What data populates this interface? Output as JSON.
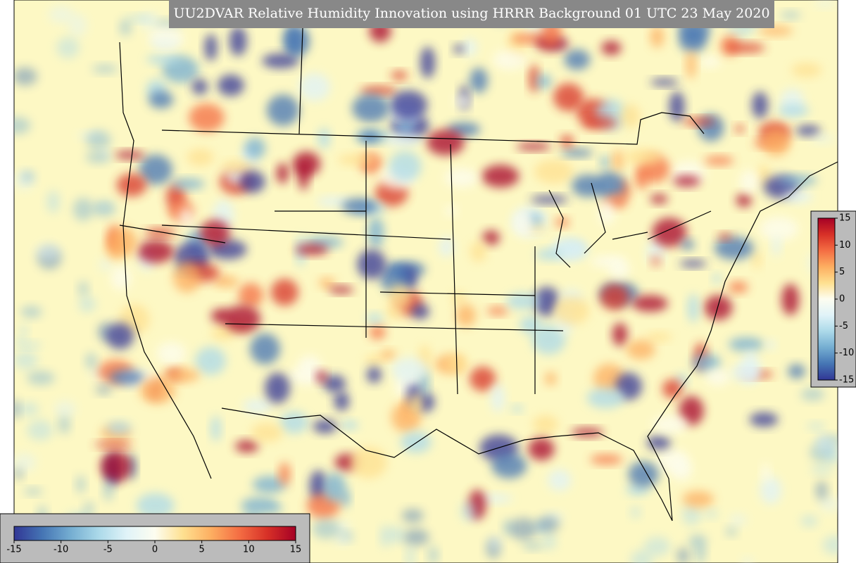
{
  "title": "UU2DVAR Relative Humidity Innovation using HRRR Background 01 UTC 23 May 2020",
  "colorbar": {
    "range": [
      -15,
      15
    ],
    "ticks": [
      -15,
      -10,
      -5,
      0,
      5,
      10,
      15
    ],
    "colors": [
      "#313695",
      "#4575b4",
      "#74add1",
      "#abd9e9",
      "#e0f3f8",
      "#fdfdf0",
      "#fee090",
      "#fdae61",
      "#f46d43",
      "#d73027",
      "#a50026"
    ]
  }
}
